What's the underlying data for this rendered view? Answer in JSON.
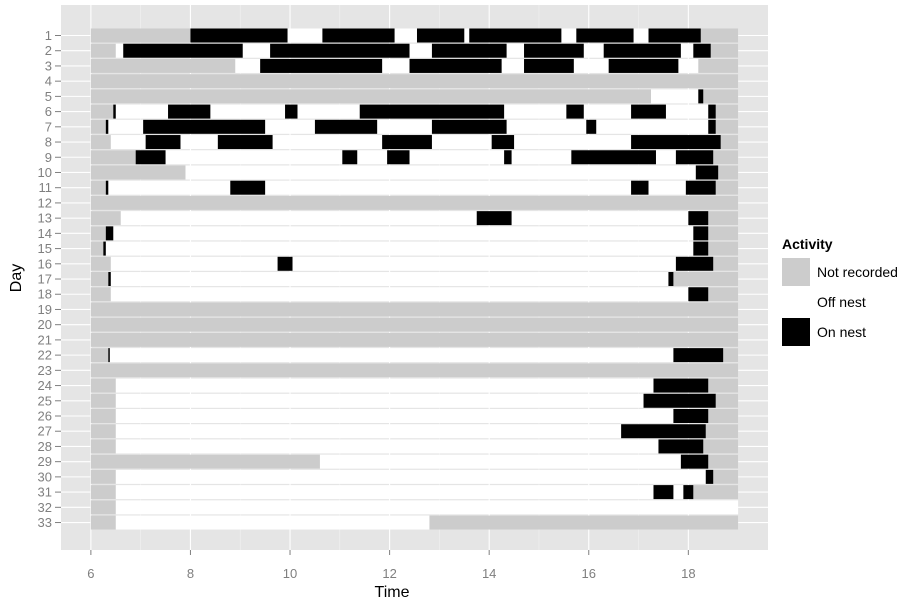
{
  "chart_data": {
    "type": "timeline",
    "xlabel": "Time",
    "ylabel": "Day",
    "xlim": [
      5.4,
      19.6
    ],
    "x_ticks": [
      6,
      8,
      10,
      12,
      14,
      16,
      18
    ],
    "days": [
      1,
      2,
      3,
      4,
      5,
      6,
      7,
      8,
      9,
      10,
      11,
      12,
      13,
      14,
      15,
      16,
      17,
      18,
      19,
      20,
      21,
      22,
      23,
      24,
      25,
      26,
      27,
      28,
      29,
      30,
      31,
      32,
      33
    ],
    "legend": {
      "title": "Activity",
      "entries": [
        {
          "label": "Not recorded",
          "color": "#cccccc"
        },
        {
          "label": "Off nest",
          "color": "#ffffff"
        },
        {
          "label": "On nest",
          "color": "#000000"
        }
      ]
    },
    "series": [
      {
        "day": 1,
        "not_recorded": [
          [
            6.0,
            8.0
          ],
          [
            18.25,
            19.0
          ]
        ],
        "on_nest": [
          [
            8.0,
            9.95
          ],
          [
            10.65,
            12.1
          ],
          [
            12.55,
            13.5
          ],
          [
            13.6,
            15.45
          ],
          [
            15.75,
            16.9
          ],
          [
            17.2,
            18.25
          ]
        ]
      },
      {
        "day": 2,
        "not_recorded": [
          [
            6.0,
            6.5
          ],
          [
            18.45,
            19.0
          ]
        ],
        "on_nest": [
          [
            6.65,
            9.05
          ],
          [
            9.6,
            12.4
          ],
          [
            12.85,
            14.35
          ],
          [
            14.7,
            15.9
          ],
          [
            16.3,
            17.85
          ],
          [
            18.1,
            18.45
          ]
        ]
      },
      {
        "day": 3,
        "not_recorded": [
          [
            6.0,
            8.9
          ],
          [
            18.2,
            19.0
          ]
        ],
        "on_nest": [
          [
            9.4,
            11.85
          ],
          [
            12.4,
            14.25
          ],
          [
            14.7,
            15.7
          ],
          [
            16.4,
            17.8
          ]
        ]
      },
      {
        "day": 4,
        "not_recorded": [
          [
            6.0,
            19.0
          ]
        ],
        "on_nest": []
      },
      {
        "day": 5,
        "not_recorded": [
          [
            6.0,
            17.25
          ],
          [
            18.3,
            19.0
          ]
        ],
        "on_nest": [
          [
            18.2,
            18.3
          ]
        ]
      },
      {
        "day": 6,
        "not_recorded": [
          [
            6.0,
            6.45
          ],
          [
            18.55,
            19.0
          ]
        ],
        "on_nest": [
          [
            6.45,
            6.5
          ],
          [
            7.55,
            8.4
          ],
          [
            9.9,
            10.15
          ],
          [
            11.4,
            14.3
          ],
          [
            15.55,
            15.9
          ],
          [
            16.85,
            17.55
          ],
          [
            18.4,
            18.55
          ]
        ]
      },
      {
        "day": 7,
        "not_recorded": [
          [
            6.0,
            6.3
          ],
          [
            18.55,
            19.0
          ]
        ],
        "on_nest": [
          [
            6.3,
            6.35
          ],
          [
            7.05,
            9.5
          ],
          [
            10.5,
            11.75
          ],
          [
            12.85,
            14.35
          ],
          [
            15.95,
            16.15
          ],
          [
            18.4,
            18.55
          ]
        ]
      },
      {
        "day": 8,
        "not_recorded": [
          [
            6.0,
            6.4
          ],
          [
            18.65,
            19.0
          ]
        ],
        "on_nest": [
          [
            7.1,
            7.8
          ],
          [
            8.55,
            9.65
          ],
          [
            11.85,
            12.85
          ],
          [
            14.05,
            14.5
          ],
          [
            16.85,
            18.65
          ]
        ]
      },
      {
        "day": 9,
        "not_recorded": [
          [
            6.0,
            6.9
          ],
          [
            18.5,
            19.0
          ]
        ],
        "on_nest": [
          [
            6.9,
            7.5
          ],
          [
            11.05,
            11.35
          ],
          [
            11.95,
            12.4
          ],
          [
            14.3,
            14.45
          ],
          [
            15.65,
            17.35
          ],
          [
            17.75,
            18.5
          ]
        ]
      },
      {
        "day": 10,
        "not_recorded": [
          [
            6.0,
            7.9
          ],
          [
            18.6,
            19.0
          ]
        ],
        "on_nest": [
          [
            18.15,
            18.6
          ]
        ]
      },
      {
        "day": 11,
        "not_recorded": [
          [
            6.0,
            6.3
          ],
          [
            18.55,
            19.0
          ]
        ],
        "on_nest": [
          [
            6.3,
            6.35
          ],
          [
            8.8,
            9.5
          ],
          [
            16.85,
            17.2
          ],
          [
            17.95,
            18.55
          ]
        ]
      },
      {
        "day": 12,
        "not_recorded": [
          [
            6.0,
            19.0
          ]
        ],
        "on_nest": []
      },
      {
        "day": 13,
        "not_recorded": [
          [
            6.0,
            6.6
          ],
          [
            18.4,
            19.0
          ]
        ],
        "on_nest": [
          [
            13.75,
            14.45
          ],
          [
            18.0,
            18.4
          ]
        ]
      },
      {
        "day": 14,
        "not_recorded": [
          [
            6.0,
            6.3
          ],
          [
            18.4,
            19.0
          ]
        ],
        "on_nest": [
          [
            6.3,
            6.45
          ],
          [
            18.1,
            18.4
          ]
        ]
      },
      {
        "day": 15,
        "not_recorded": [
          [
            6.0,
            6.25
          ],
          [
            18.4,
            19.0
          ]
        ],
        "on_nest": [
          [
            6.25,
            6.3
          ],
          [
            18.1,
            18.4
          ]
        ]
      },
      {
        "day": 16,
        "not_recorded": [
          [
            6.0,
            6.4
          ],
          [
            18.5,
            19.0
          ]
        ],
        "on_nest": [
          [
            9.75,
            10.05
          ],
          [
            17.75,
            18.5
          ]
        ]
      },
      {
        "day": 17,
        "not_recorded": [
          [
            6.0,
            6.35
          ],
          [
            17.7,
            19.0
          ]
        ],
        "on_nest": [
          [
            6.35,
            6.4
          ],
          [
            17.6,
            17.7
          ]
        ]
      },
      {
        "day": 18,
        "not_recorded": [
          [
            6.0,
            6.4
          ],
          [
            18.4,
            19.0
          ]
        ],
        "on_nest": [
          [
            18.0,
            18.4
          ]
        ]
      },
      {
        "day": 19,
        "not_recorded": [
          [
            6.0,
            19.0
          ]
        ],
        "on_nest": []
      },
      {
        "day": 20,
        "not_recorded": [
          [
            6.0,
            19.0
          ]
        ],
        "on_nest": []
      },
      {
        "day": 21,
        "not_recorded": [
          [
            6.0,
            19.0
          ]
        ],
        "on_nest": []
      },
      {
        "day": 22,
        "not_recorded": [
          [
            6.0,
            6.35
          ],
          [
            18.7,
            19.0
          ]
        ],
        "on_nest": [
          [
            6.35,
            6.38
          ],
          [
            17.7,
            18.7
          ]
        ]
      },
      {
        "day": 23,
        "not_recorded": [
          [
            6.0,
            19.0
          ]
        ],
        "on_nest": []
      },
      {
        "day": 24,
        "not_recorded": [
          [
            6.0,
            6.5
          ],
          [
            18.4,
            19.0
          ]
        ],
        "on_nest": [
          [
            17.3,
            18.4
          ]
        ]
      },
      {
        "day": 25,
        "not_recorded": [
          [
            6.0,
            6.5
          ],
          [
            18.55,
            19.0
          ]
        ],
        "on_nest": [
          [
            17.1,
            18.55
          ]
        ]
      },
      {
        "day": 26,
        "not_recorded": [
          [
            6.0,
            6.5
          ],
          [
            18.4,
            19.0
          ]
        ],
        "on_nest": [
          [
            17.7,
            18.4
          ]
        ]
      },
      {
        "day": 27,
        "not_recorded": [
          [
            6.0,
            6.5
          ],
          [
            18.35,
            19.0
          ]
        ],
        "on_nest": [
          [
            16.65,
            18.35
          ]
        ]
      },
      {
        "day": 28,
        "not_recorded": [
          [
            6.0,
            6.5
          ],
          [
            18.3,
            19.0
          ]
        ],
        "on_nest": [
          [
            17.4,
            18.3
          ]
        ]
      },
      {
        "day": 29,
        "not_recorded": [
          [
            6.0,
            10.6
          ],
          [
            18.4,
            19.0
          ]
        ],
        "on_nest": [
          [
            17.85,
            18.4
          ]
        ]
      },
      {
        "day": 30,
        "not_recorded": [
          [
            6.0,
            6.5
          ],
          [
            18.5,
            19.0
          ]
        ],
        "on_nest": [
          [
            18.35,
            18.5
          ]
        ]
      },
      {
        "day": 31,
        "not_recorded": [
          [
            6.0,
            6.5
          ],
          [
            18.1,
            19.0
          ]
        ],
        "on_nest": [
          [
            17.3,
            17.7
          ],
          [
            17.9,
            18.1
          ]
        ]
      },
      {
        "day": 32,
        "not_recorded": [
          [
            6.0,
            6.5
          ]
        ],
        "on_nest": []
      },
      {
        "day": 33,
        "not_recorded": [
          [
            6.0,
            6.5
          ],
          [
            12.8,
            19.0
          ]
        ],
        "on_nest": []
      }
    ]
  }
}
